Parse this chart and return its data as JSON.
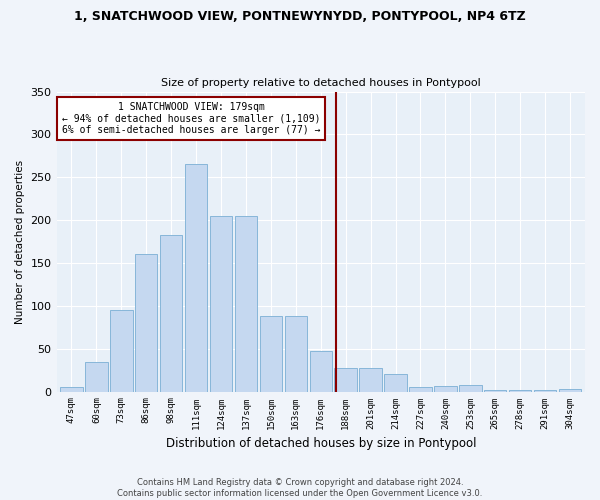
{
  "title1": "1, SNATCHWOOD VIEW, PONTNEWYNYDD, PONTYPOOL, NP4 6TZ",
  "title2": "Size of property relative to detached houses in Pontypool",
  "xlabel": "Distribution of detached houses by size in Pontypool",
  "ylabel": "Number of detached properties",
  "categories": [
    "47sqm",
    "60sqm",
    "73sqm",
    "86sqm",
    "98sqm",
    "111sqm",
    "124sqm",
    "137sqm",
    "150sqm",
    "163sqm",
    "176sqm",
    "188sqm",
    "201sqm",
    "214sqm",
    "227sqm",
    "240sqm",
    "253sqm",
    "265sqm",
    "278sqm",
    "291sqm",
    "304sqm"
  ],
  "values": [
    5,
    35,
    95,
    160,
    183,
    265,
    205,
    205,
    88,
    88,
    47,
    27,
    27,
    20,
    5,
    7,
    8,
    2,
    2,
    2,
    3
  ],
  "bar_color": "#c5d8f0",
  "bar_edge_color": "#7aafd4",
  "bg_color": "#e8f0f8",
  "grid_color": "#ffffff",
  "vline_x_index": 10.6,
  "vline_color": "#8b0000",
  "annotation_line1": "1 SNATCHWOOD VIEW: 179sqm",
  "annotation_line2": "← 94% of detached houses are smaller (1,109)",
  "annotation_line3": "6% of semi-detached houses are larger (77) →",
  "annotation_box_color": "#8b0000",
  "footer1": "Contains HM Land Registry data © Crown copyright and database right 2024.",
  "footer2": "Contains public sector information licensed under the Open Government Licence v3.0.",
  "ylim": [
    0,
    350
  ],
  "yticks": [
    0,
    50,
    100,
    150,
    200,
    250,
    300,
    350
  ],
  "fig_width": 6.0,
  "fig_height": 5.0,
  "dpi": 100
}
